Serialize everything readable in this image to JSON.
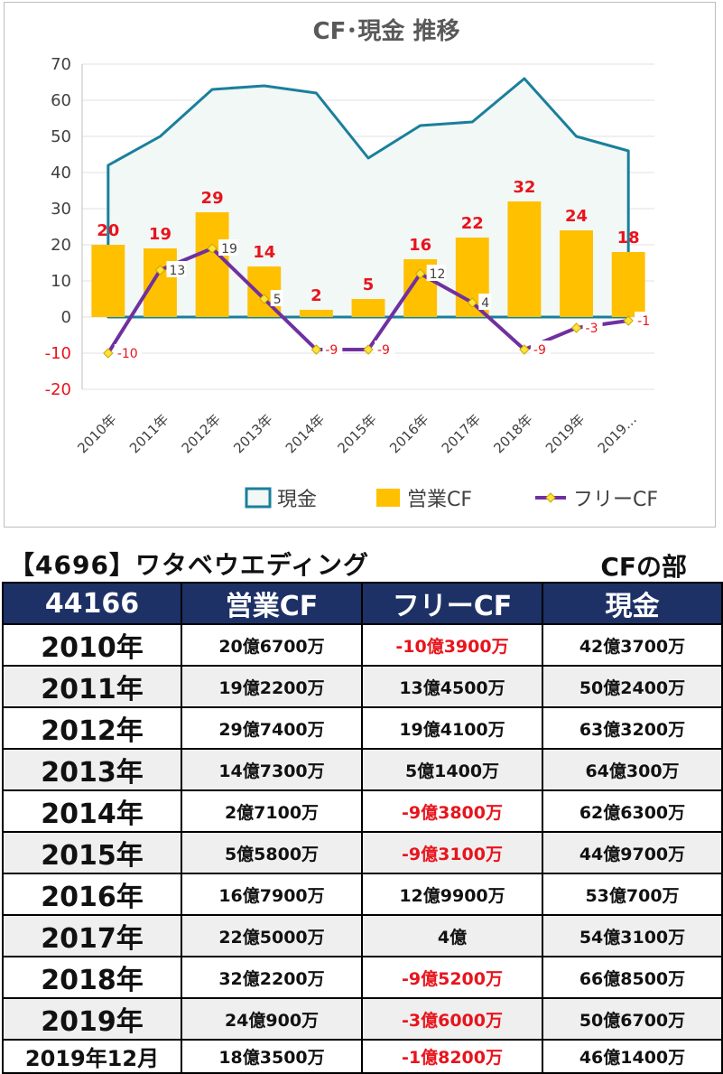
{
  "chart_data": {
    "type": "bar",
    "title": "CF･現金 推移",
    "categories": [
      "2010年",
      "2011年",
      "2012年",
      "2013年",
      "2014年",
      "2015年",
      "2016年",
      "2017年",
      "2018年",
      "2019年",
      "2019…"
    ],
    "ylim": [
      -20,
      70
    ],
    "yticks": [
      70,
      60,
      50,
      40,
      30,
      20,
      10,
      0,
      -10,
      -20
    ],
    "series": [
      {
        "name": "現金",
        "kind": "area",
        "color": "#1a7f9c",
        "fill": "#f1f8f6",
        "values": [
          42,
          50,
          63,
          64,
          62,
          44,
          53,
          54,
          66,
          50,
          46
        ]
      },
      {
        "name": "営業CF",
        "kind": "bar",
        "color": "#ffc000",
        "values": [
          20,
          19,
          29,
          14,
          2,
          5,
          16,
          22,
          32,
          24,
          18
        ]
      },
      {
        "name": "フリーCF",
        "kind": "line",
        "color": "#7030a0",
        "marker_color": "#ffe23a",
        "values": [
          -10,
          13,
          19,
          5,
          -9,
          -9,
          12,
          4,
          -9,
          -3,
          -1
        ]
      }
    ],
    "legend_position": "bottom"
  },
  "caption": {
    "left": "【4696】ワタベウエディング",
    "right": "CFの部"
  },
  "table": {
    "headers": [
      "44166",
      "営業CF",
      "フリーCF",
      "現金"
    ],
    "rows": [
      {
        "year": "2010年",
        "op": "20億6700万",
        "free": "-10億3900万",
        "cash": "42億3700万",
        "free_neg": true
      },
      {
        "year": "2011年",
        "op": "19億2200万",
        "free": "13億4500万",
        "cash": "50億2400万",
        "free_neg": false
      },
      {
        "year": "2012年",
        "op": "29億7400万",
        "free": "19億4100万",
        "cash": "63億3200万",
        "free_neg": false
      },
      {
        "year": "2013年",
        "op": "14億7300万",
        "free": "5億1400万",
        "cash": "64億300万",
        "free_neg": false
      },
      {
        "year": "2014年",
        "op": "2億7100万",
        "free": "-9億3800万",
        "cash": "62億6300万",
        "free_neg": true
      },
      {
        "year": "2015年",
        "op": "5億5800万",
        "free": "-9億3100万",
        "cash": "44億9700万",
        "free_neg": true
      },
      {
        "year": "2016年",
        "op": "16億7900万",
        "free": "12億9900万",
        "cash": "53億700万",
        "free_neg": false
      },
      {
        "year": "2017年",
        "op": "22億5000万",
        "free": "4億",
        "cash": "54億3100万",
        "free_neg": false
      },
      {
        "year": "2018年",
        "op": "32億2200万",
        "free": "-9億5200万",
        "cash": "66億8500万",
        "free_neg": true
      },
      {
        "year": "2019年",
        "op": "24億900万",
        "free": "-3億6000万",
        "cash": "50億6700万",
        "free_neg": true
      },
      {
        "year": "2019年12月",
        "op": "18億3500万",
        "free": "-1億8200万",
        "cash": "46億1400万",
        "free_neg": true
      }
    ]
  }
}
